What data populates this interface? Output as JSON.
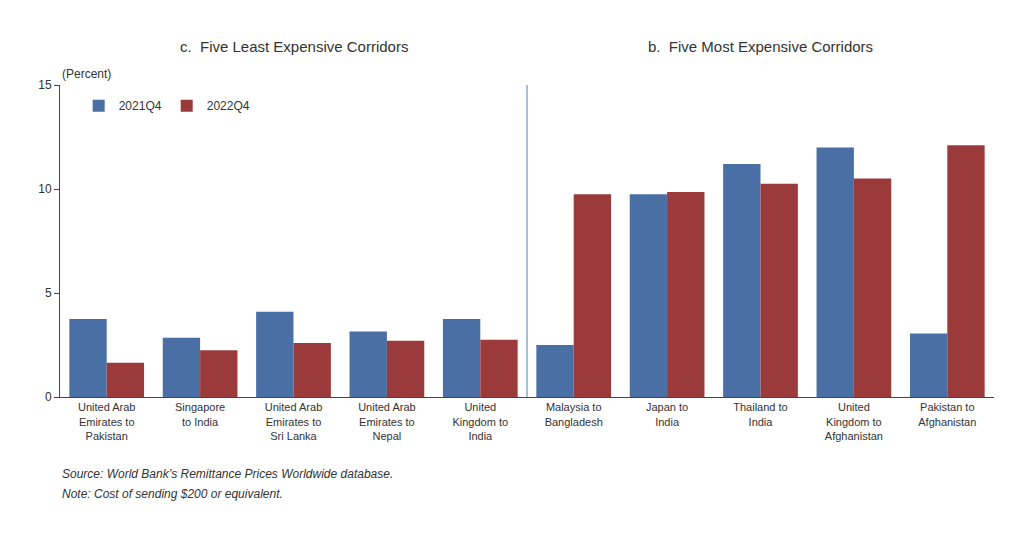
{
  "chart_data": {
    "type": "bar",
    "titles": [
      "c.  Five Least Expensive Corridors",
      "b.  Five Most Expensive Corridors"
    ],
    "ylabel": "(Percent)",
    "categories": [
      "United Arab\nEmirates to\nPakistan",
      "Singapore\nto India",
      "United Arab\nEmirates to\nSri Lanka",
      "United Arab\nEmirates to\nNepal",
      "United\nKingdom to\nIndia",
      "Malaysia to\nBangladesh",
      "Japan to\nIndia",
      "Thailand to\nIndia",
      "United\nKingdom to\nAfghanistan",
      "Pakistan to\nAfghanistan"
    ],
    "series": [
      {
        "name": "2021Q4",
        "color": "#4a6fa5",
        "values": [
          3.75,
          2.85,
          4.1,
          3.15,
          3.75,
          2.5,
          9.75,
          11.2,
          12.0,
          3.05
        ]
      },
      {
        "name": "2022Q4",
        "color": "#9b3a3a",
        "values": [
          1.65,
          2.25,
          2.6,
          2.7,
          2.75,
          9.75,
          9.85,
          10.25,
          10.5,
          12.1
        ]
      }
    ],
    "ylim": [
      0,
      15
    ],
    "yticks": [
      0,
      5,
      10,
      15
    ],
    "grid": false,
    "legend": "upper left",
    "annotations": [
      "Source: World Bank’s Remittance Prices Worldwide database.",
      "Note: Cost of sending $200 or equivalent."
    ]
  }
}
